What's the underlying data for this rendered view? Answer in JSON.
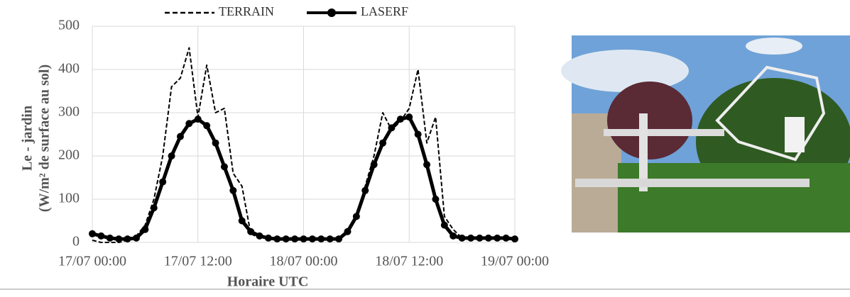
{
  "chart_data": {
    "type": "line",
    "ylabel": [
      "Le - jardin",
      "(W/m² de surface au sol)"
    ],
    "xlabel": "Horaire UTC",
    "x": [
      "17/07 00:00",
      "17/07 01:00",
      "17/07 02:00",
      "17/07 03:00",
      "17/07 04:00",
      "17/07 05:00",
      "17/07 06:00",
      "17/07 07:00",
      "17/07 08:00",
      "17/07 09:00",
      "17/07 10:00",
      "17/07 11:00",
      "17/07 12:00",
      "17/07 13:00",
      "17/07 14:00",
      "17/07 15:00",
      "17/07 16:00",
      "17/07 17:00",
      "17/07 18:00",
      "17/07 19:00",
      "17/07 20:00",
      "17/07 21:00",
      "17/07 22:00",
      "17/07 23:00",
      "18/07 00:00",
      "18/07 01:00",
      "18/07 02:00",
      "18/07 03:00",
      "18/07 04:00",
      "18/07 05:00",
      "18/07 06:00",
      "18/07 07:00",
      "18/07 08:00",
      "18/07 09:00",
      "18/07 10:00",
      "18/07 11:00",
      "18/07 12:00",
      "18/07 13:00",
      "18/07 14:00",
      "18/07 15:00",
      "18/07 16:00",
      "18/07 17:00",
      "18/07 18:00",
      "18/07 19:00",
      "18/07 20:00",
      "18/07 21:00",
      "18/07 22:00",
      "18/07 23:00",
      "19/07 00:00"
    ],
    "series": [
      {
        "name": "TERRAIN",
        "color": "#000000",
        "dash": true,
        "marker": false,
        "values": [
          5,
          0,
          0,
          0,
          5,
          15,
          40,
          100,
          200,
          360,
          380,
          450,
          290,
          410,
          300,
          310,
          160,
          130,
          20,
          10,
          10,
          10,
          10,
          10,
          10,
          10,
          10,
          10,
          10,
          20,
          60,
          130,
          200,
          300,
          260,
          280,
          310,
          400,
          230,
          290,
          60,
          30,
          10,
          10,
          10,
          10,
          10,
          10,
          10
        ]
      },
      {
        "name": "LASERF",
        "color": "#000000",
        "dash": false,
        "marker": true,
        "values": [
          20,
          15,
          10,
          8,
          8,
          10,
          30,
          80,
          140,
          200,
          245,
          275,
          285,
          270,
          230,
          175,
          120,
          50,
          25,
          15,
          10,
          8,
          8,
          8,
          8,
          8,
          8,
          8,
          8,
          25,
          60,
          120,
          180,
          230,
          265,
          285,
          290,
          250,
          180,
          100,
          40,
          15,
          10,
          10,
          10,
          10,
          10,
          10,
          8
        ]
      }
    ],
    "xlim": [
      "17/07 00:00",
      "19/07 00:00"
    ],
    "xticks": [
      "17/07 00:00",
      "17/07 12:00",
      "18/07 00:00",
      "18/07 12:00",
      "19/07 00:00"
    ],
    "ylim": [
      0,
      500
    ],
    "yticks": [
      0,
      100,
      200,
      300,
      400,
      500
    ],
    "grid": true
  }
}
